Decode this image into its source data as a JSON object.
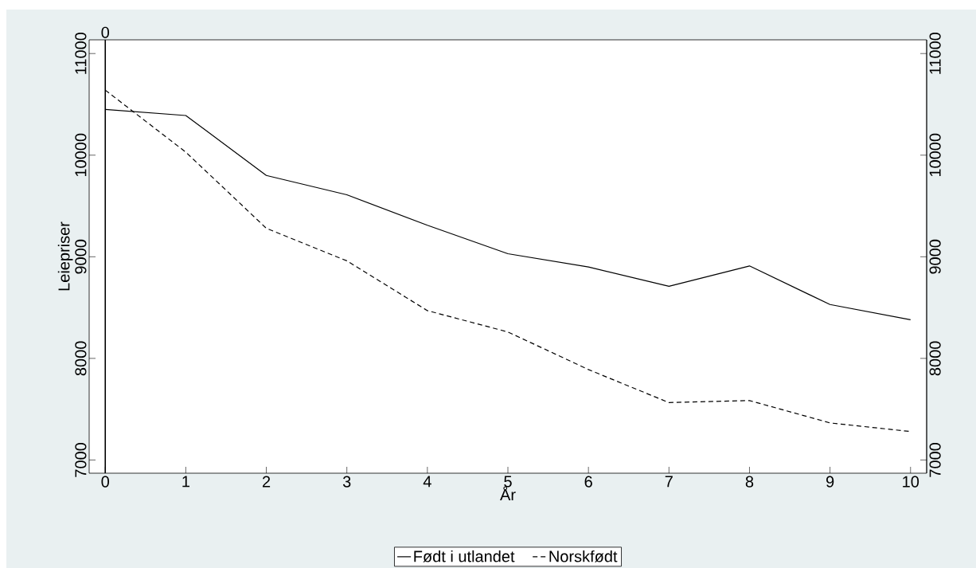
{
  "chart_data": {
    "type": "line",
    "xlabel": "År",
    "ylabel": "Leiepriser",
    "x": [
      0,
      1,
      2,
      3,
      4,
      5,
      6,
      7,
      8,
      9,
      10
    ],
    "series": [
      {
        "name": "Født i utlandet",
        "color": "#000000",
        "line_style": "solid",
        "values": [
          10450,
          10390,
          9800,
          9610,
          9310,
          9030,
          8900,
          8710,
          8910,
          8530,
          8380
        ]
      },
      {
        "name": "Norskfødt",
        "color": "#000000",
        "line_style": "dashed",
        "values": [
          10640,
          10030,
          9280,
          8960,
          8470,
          8260,
          7890,
          7565,
          7585,
          7365,
          7280
        ]
      }
    ],
    "xlim": [
      -0.2,
      10.2
    ],
    "ylim": [
      6870,
      11135
    ],
    "y2lim": [
      6870,
      11135
    ],
    "xticks": [
      0,
      1,
      2,
      3,
      4,
      5,
      6,
      7,
      8,
      9,
      10
    ],
    "yticks": [
      7000,
      8000,
      9000,
      10000,
      11000
    ],
    "y2ticks": [
      7000,
      8000,
      9000,
      10000,
      11000
    ],
    "ref_lines": [
      {
        "axis": "x",
        "value": 0,
        "label": "0"
      }
    ],
    "legend": "bottom"
  }
}
